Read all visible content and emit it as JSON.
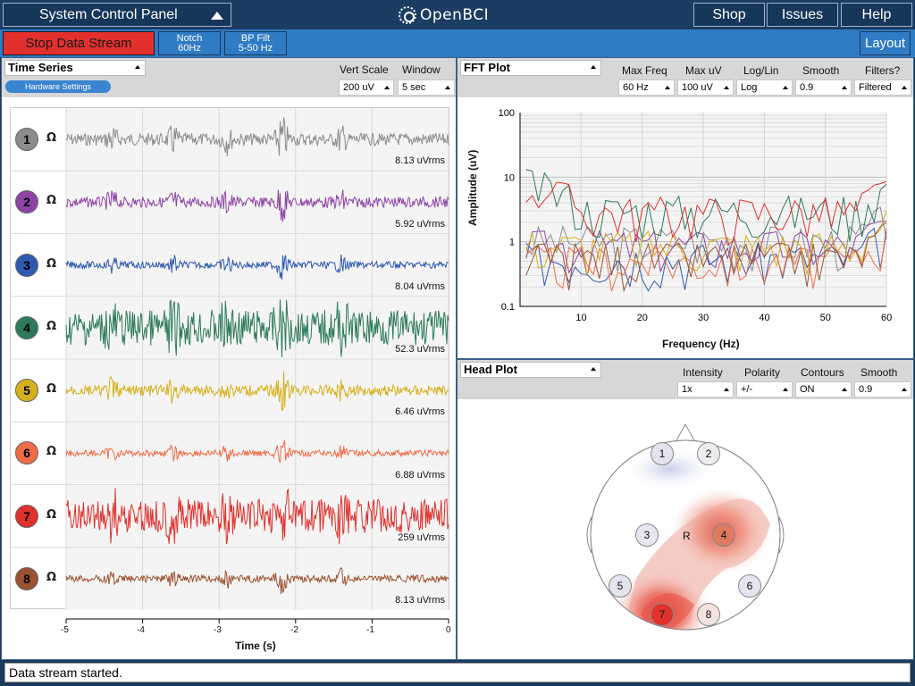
{
  "app": {
    "system_control_label": "System Control Panel",
    "logo_text": "OpenBCI",
    "nav": [
      "Shop",
      "Issues",
      "Help"
    ]
  },
  "toolbar": {
    "stop_label": "Stop Data Stream",
    "notch": [
      "Notch",
      "60Hz"
    ],
    "bpfilt": [
      "BP Filt",
      "5-50 Hz"
    ],
    "layout_label": "Layout"
  },
  "time_series": {
    "title": "Time Series",
    "hw_settings": "Hardware Settings",
    "controls": [
      {
        "label": "Vert Scale",
        "value": "200 uV"
      },
      {
        "label": "Window",
        "value": "5 sec"
      }
    ],
    "xlabel": "Time (s)",
    "xticks": [
      "-5",
      "-4",
      "-3",
      "-2",
      "-1",
      "0"
    ],
    "channels": [
      {
        "num": "1",
        "color": "#8c8c8c",
        "uvrms": "8.13 uVrms",
        "activity": 0.25
      },
      {
        "num": "2",
        "color": "#8e44a6",
        "uvrms": "5.92 uVrms",
        "activity": 0.2
      },
      {
        "num": "3",
        "color": "#2f58b0",
        "uvrms": "8.04 uVrms",
        "activity": 0.1
      },
      {
        "num": "4",
        "color": "#2c7a5a",
        "uvrms": "52.3 uVrms",
        "activity": 0.9
      },
      {
        "num": "5",
        "color": "#d6b01a",
        "uvrms": "6.46 uVrms",
        "activity": 0.2
      },
      {
        "num": "6",
        "color": "#f06b47",
        "uvrms": "6.88 uVrms",
        "activity": 0.08
      },
      {
        "num": "7",
        "color": "#e0312d",
        "uvrms": "259 uVrms",
        "activity": 0.85
      },
      {
        "num": "8",
        "color": "#9b5230",
        "uvrms": "8.13 uVrms",
        "activity": 0.1
      }
    ],
    "ohm_symbol": "Ω"
  },
  "fft": {
    "title": "FFT Plot",
    "controls": [
      {
        "label": "Max Freq",
        "value": "60 Hz"
      },
      {
        "label": "Max uV",
        "value": "100 uV"
      },
      {
        "label": "Log/Lin",
        "value": "Log"
      },
      {
        "label": "Smooth",
        "value": "0.9"
      },
      {
        "label": "Filters?",
        "value": "Filtered"
      }
    ],
    "xlabel": "Frequency (Hz)",
    "ylabel": "Amplitude (uV)",
    "xticks": [
      "10",
      "20",
      "30",
      "40",
      "50",
      "60"
    ],
    "yticks": [
      "100",
      "10",
      "1",
      "0.1"
    ]
  },
  "head_plot": {
    "title": "Head Plot",
    "controls": [
      {
        "label": "Intensity",
        "value": "1x"
      },
      {
        "label": "Polarity",
        "value": "+/-"
      },
      {
        "label": "Contours",
        "value": "ON"
      },
      {
        "label": "Smooth",
        "value": "0.9"
      }
    ],
    "reference_label": "R",
    "electrodes": [
      "1",
      "2",
      "3",
      "4",
      "5",
      "6",
      "7",
      "8"
    ]
  },
  "status": {
    "message": "Data stream started."
  }
}
